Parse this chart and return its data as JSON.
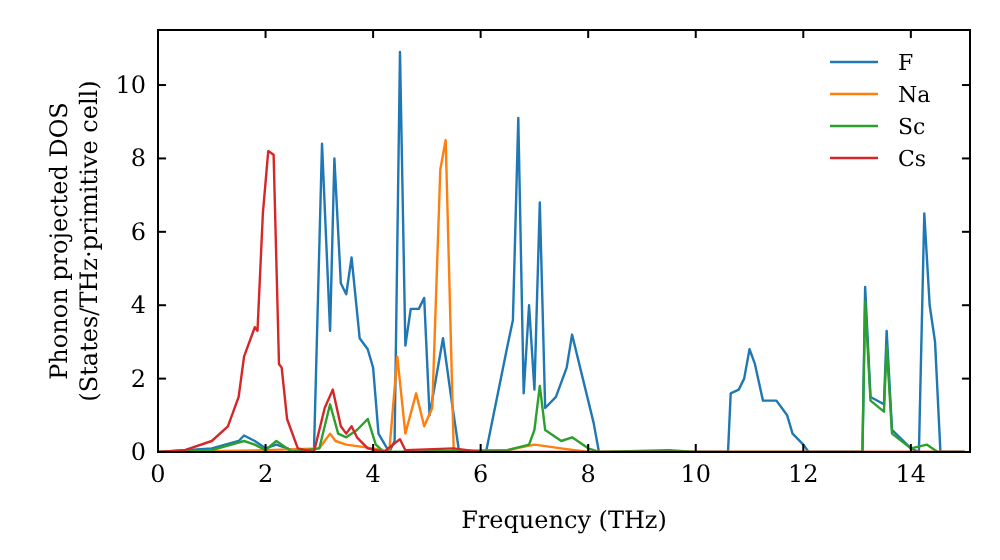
{
  "chart_data": {
    "type": "line",
    "xlabel": "Frequency (THz)",
    "ylabel": "Phonon projected DOS\n(States/THz·primitive cell)",
    "xlim": [
      0,
      15.1
    ],
    "ylim": [
      0,
      11.5
    ],
    "xticks": [
      0,
      2,
      4,
      6,
      8,
      10,
      12,
      14
    ],
    "yticks": [
      0,
      2,
      4,
      6,
      8,
      10
    ],
    "grid": false,
    "legend": "top right",
    "marker": "none",
    "line_style": "solid",
    "series": [
      {
        "name": "F",
        "color": "#1f77b4",
        "x": [
          0,
          1,
          1.5,
          1.6,
          1.8,
          2.0,
          2.2,
          2.5,
          2.9,
          3.05,
          3.2,
          3.28,
          3.4,
          3.5,
          3.6,
          3.75,
          3.9,
          4.0,
          4.1,
          4.3,
          4.4,
          4.5,
          4.6,
          4.7,
          4.85,
          4.95,
          5.05,
          5.3,
          5.45,
          5.6,
          6.1,
          6.5,
          6.6,
          6.7,
          6.8,
          6.9,
          7.0,
          7.1,
          7.2,
          7.4,
          7.6,
          7.7,
          7.9,
          8.1,
          8.2,
          10.6,
          10.65,
          10.8,
          10.9,
          11.0,
          11.1,
          11.25,
          11.5,
          11.7,
          11.8,
          12.0,
          12.1,
          13.1,
          13.15,
          13.25,
          13.5,
          13.55,
          13.65,
          14.0,
          14.15,
          14.25,
          14.35,
          14.45,
          14.55,
          15
        ],
        "values": [
          0,
          0.1,
          0.3,
          0.45,
          0.3,
          0.1,
          0.2,
          0.05,
          0,
          8.4,
          3.3,
          8.0,
          4.6,
          4.3,
          5.3,
          3.1,
          2.8,
          2.3,
          0.5,
          0,
          0.3,
          10.9,
          2.9,
          3.9,
          3.9,
          4.2,
          1.0,
          3.1,
          1.5,
          0,
          0,
          2.9,
          3.6,
          9.1,
          1.6,
          4.0,
          1.7,
          6.8,
          1.2,
          1.5,
          2.3,
          3.2,
          2.0,
          0.8,
          0,
          0,
          1.6,
          1.7,
          2.0,
          2.8,
          2.4,
          1.4,
          1.4,
          1.0,
          0.5,
          0.2,
          0,
          0,
          4.5,
          1.5,
          1.3,
          3.3,
          0.6,
          0.1,
          0,
          6.5,
          4.0,
          3.0,
          0,
          0
        ]
      },
      {
        "name": "Na",
        "color": "#ff7f0e",
        "x": [
          0,
          2,
          3,
          3.2,
          3.3,
          3.5,
          4,
          4.3,
          4.45,
          4.6,
          4.8,
          4.95,
          5.1,
          5.25,
          5.35,
          5.5,
          6.5,
          7.0,
          7.5,
          8,
          15
        ],
        "values": [
          0,
          0.05,
          0.1,
          0.5,
          0.3,
          0.2,
          0.1,
          0,
          2.6,
          0.5,
          1.6,
          0.7,
          1.2,
          7.7,
          8.5,
          0,
          0.05,
          0.2,
          0.1,
          0,
          0
        ]
      },
      {
        "name": "Sc",
        "color": "#2ca02c",
        "x": [
          0,
          1,
          1.6,
          1.8,
          2.0,
          2.2,
          2.5,
          3.0,
          3.2,
          3.35,
          3.5,
          3.7,
          3.9,
          4.05,
          4.2,
          6.5,
          6.9,
          7.0,
          7.1,
          7.2,
          7.5,
          7.7,
          8.0,
          8.2,
          9.5,
          10,
          13.1,
          13.15,
          13.25,
          13.5,
          13.55,
          13.65,
          14.0,
          14.3,
          14.5,
          15
        ],
        "values": [
          0,
          0.05,
          0.3,
          0.2,
          0.05,
          0.3,
          0,
          0.1,
          1.3,
          0.5,
          0.4,
          0.6,
          0.9,
          0.2,
          0,
          0.05,
          0.2,
          0.6,
          1.8,
          0.6,
          0.3,
          0.4,
          0.1,
          0,
          0.05,
          0,
          0,
          4.1,
          1.4,
          1.1,
          2.9,
          0.5,
          0.1,
          0.2,
          0,
          0
        ]
      },
      {
        "name": "Cs",
        "color": "#d62728",
        "x": [
          0,
          0.5,
          1.0,
          1.3,
          1.5,
          1.6,
          1.8,
          1.85,
          1.95,
          2.05,
          2.15,
          2.25,
          2.3,
          2.4,
          2.6,
          2.9,
          3.1,
          3.25,
          3.4,
          3.5,
          3.6,
          3.7,
          3.9,
          4.2,
          4.5,
          4.6,
          5.5,
          6,
          15
        ],
        "values": [
          0,
          0.05,
          0.3,
          0.7,
          1.5,
          2.6,
          3.4,
          3.3,
          6.5,
          8.2,
          8.1,
          2.4,
          2.3,
          0.9,
          0.1,
          0,
          1.2,
          1.7,
          0.7,
          0.5,
          0.7,
          0.4,
          0.1,
          0,
          0.35,
          0.05,
          0.1,
          0,
          0
        ]
      }
    ]
  }
}
